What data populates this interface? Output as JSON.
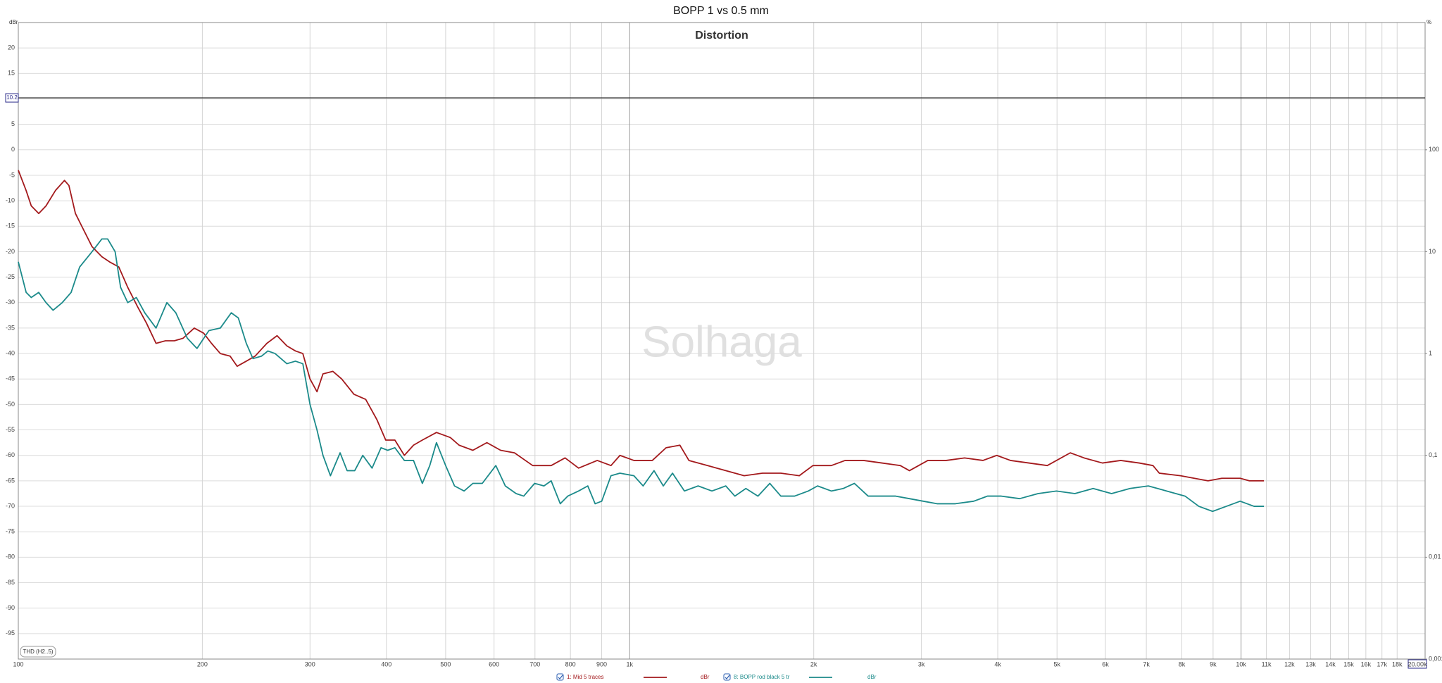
{
  "chart_data": {
    "type": "line",
    "title": "BOPP 1 vs 0.5 mm",
    "subtitle": "Distortion",
    "watermark": "Solhaga",
    "ylabel": "dBr",
    "y2label": "%",
    "annotation": "THD (H2..5)",
    "marker_y": 10.2,
    "log_x": true,
    "log_y2": true,
    "grid": true,
    "xlim": [
      100,
      20000
    ],
    "xticks": [
      100,
      200,
      300,
      400,
      500,
      600,
      700,
      800,
      900,
      {
        "value": 1000,
        "label": "1k"
      },
      {
        "value": 2000,
        "label": "2k"
      },
      {
        "value": 3000,
        "label": "3k"
      },
      {
        "value": 4000,
        "label": "4k"
      },
      {
        "value": 5000,
        "label": "5k"
      },
      {
        "value": 6000,
        "label": "6k"
      },
      {
        "value": 7000,
        "label": "7k"
      },
      {
        "value": 8000,
        "label": "8k"
      },
      {
        "value": 9000,
        "label": "9k"
      },
      {
        "value": 10000,
        "label": "10k"
      },
      {
        "value": 11000,
        "label": "11k"
      },
      {
        "value": 12000,
        "label": "12k"
      },
      {
        "value": 13000,
        "label": "13k"
      },
      {
        "value": 14000,
        "label": "14k"
      },
      {
        "value": 15000,
        "label": "15k"
      },
      {
        "value": 16000,
        "label": "16k"
      },
      {
        "value": 17000,
        "label": "17k"
      },
      {
        "value": 18000,
        "label": "18k"
      },
      {
        "value": 20000,
        "label": "20.00k"
      }
    ],
    "ylim": [
      -100,
      25
    ],
    "yticks": [
      20,
      15,
      10,
      5,
      0,
      -5,
      -10,
      -15,
      -20,
      -25,
      -30,
      -35,
      -40,
      -45,
      -50,
      -55,
      -60,
      -65,
      -70,
      -75,
      -80,
      -85,
      -90,
      -95
    ],
    "y2lim": [
      0.001,
      1778
    ],
    "y2ticks": [
      100,
      10,
      1,
      {
        "value": 0.1,
        "label": "0,1"
      },
      {
        "value": 0.01,
        "label": "0,01"
      },
      {
        "value": 0.001,
        "label": "0,001"
      }
    ],
    "series": [
      {
        "name": "1: Mid 5 traces",
        "unit": "dBr",
        "color": "#a3191c",
        "x": [
          100,
          103,
          105,
          108,
          111,
          115,
          119,
          121,
          124,
          127,
          132,
          137,
          141,
          146,
          151,
          157,
          162,
          168,
          174,
          180,
          186,
          194,
          201,
          207,
          214,
          222,
          228,
          236,
          244,
          255,
          265,
          275,
          284,
          292,
          300,
          308,
          315,
          327,
          338,
          354,
          370,
          386,
          399,
          413,
          428,
          443,
          458,
          483,
          509,
          526,
          554,
          584,
          615,
          648,
          694,
          744,
          784,
          825,
          885,
          932,
          964,
          1016,
          1089,
          1147,
          1208,
          1250,
          1340,
          1436,
          1539,
          1649,
          1767,
          1894,
          1994,
          2137,
          2251,
          2413,
          2586,
          2771,
          2868,
          3074,
          3294,
          3530,
          3783,
          3985,
          4197,
          4498,
          4820,
          5256,
          5536,
          5932,
          6357,
          6813,
          7176,
          7351,
          7960,
          8384,
          8830,
          9300,
          9967,
          10320,
          10900
        ],
        "values": [
          -4,
          -8,
          -11,
          -12.5,
          -11,
          -8,
          -6,
          -7,
          -12.5,
          -15,
          -19,
          -21,
          -22,
          -23,
          -27,
          -31,
          -34,
          -38,
          -37.5,
          -37.5,
          -37,
          -35,
          -36,
          -38,
          -40,
          -40.5,
          -42.5,
          -41.5,
          -40.5,
          -38,
          -36.5,
          -38.5,
          -39.5,
          -40,
          -45,
          -47.5,
          -44,
          -43.5,
          -45,
          -48,
          -49,
          -53,
          -57,
          -57,
          -60,
          -58,
          -57,
          -55.5,
          -56.5,
          -58,
          -59,
          -57.5,
          -59,
          -59.5,
          -62,
          -62,
          -60.5,
          -62.5,
          -61,
          -62,
          -60,
          -61,
          -61,
          -58.5,
          -58,
          -61,
          -62,
          -63,
          -64,
          -63.5,
          -63.5,
          -64,
          -62,
          -62,
          -61,
          -61,
          -61.5,
          -62,
          -63,
          -61,
          -61,
          -60.5,
          -61,
          -60,
          -61,
          -61.5,
          -62,
          -59.5,
          -60.5,
          -61.5,
          -61,
          -61.5,
          -62,
          -63.5,
          -64,
          -64.5,
          -65,
          -64.5,
          -64.5,
          -65,
          -65
        ]
      },
      {
        "name": "8: BOPP rod black 5 tr",
        "unit": "dBr",
        "color": "#1b8a8a",
        "x": [
          100,
          103,
          105,
          108,
          111,
          114,
          118,
          122,
          126,
          132,
          137,
          140,
          144,
          147,
          151,
          156,
          161,
          168,
          175,
          181,
          189,
          196,
          205,
          214,
          223,
          229,
          236,
          242,
          250,
          256,
          263,
          275,
          284,
          292,
          300,
          308,
          315,
          324,
          336,
          345,
          355,
          366,
          379,
          392,
          402,
          413,
          428,
          443,
          458,
          471,
          483,
          500,
          517,
          536,
          554,
          574,
          604,
          626,
          652,
          671,
          699,
          724,
          744,
          770,
          792,
          825,
          854,
          878,
          900,
          932,
          964,
          1016,
          1052,
          1096,
          1135,
          1175,
          1229,
          1294,
          1363,
          1436,
          1486,
          1549,
          1621,
          1695,
          1767,
          1861,
          1960,
          2029,
          2137,
          2236,
          2331,
          2455,
          2586,
          2723,
          2868,
          3021,
          3182,
          3410,
          3654,
          3848,
          4054,
          4344,
          4655,
          4989,
          5347,
          5729,
          6140,
          6580,
          7051,
          7556,
          8098,
          8529,
          8984,
          9462,
          9967,
          10500,
          10900
        ],
        "values": [
          -22,
          -28,
          -29,
          -28,
          -30,
          -31.5,
          -30,
          -28,
          -23,
          -20,
          -17.5,
          -17.5,
          -20,
          -27,
          -30,
          -29,
          -32,
          -35,
          -30,
          -32,
          -37,
          -39,
          -35.5,
          -35,
          -32,
          -33,
          -38,
          -41,
          -40.5,
          -39.5,
          -40,
          -42,
          -41.5,
          -42,
          -50,
          -55,
          -60,
          -64,
          -59.5,
          -63,
          -63,
          -60,
          -62.5,
          -58.5,
          -59,
          -58.5,
          -61,
          -61,
          -65.5,
          -62,
          -57.5,
          -62,
          -66,
          -67,
          -65.5,
          -65.5,
          -62,
          -66,
          -67.5,
          -68,
          -65.5,
          -66,
          -65,
          -69.5,
          -68,
          -67,
          -66,
          -69.5,
          -69,
          -64,
          -63.5,
          -64,
          -66,
          -63,
          -66,
          -63.5,
          -67,
          -66,
          -67,
          -66,
          -68,
          -66.5,
          -68,
          -65.5,
          -68,
          -68,
          -67,
          -66,
          -67,
          -66.5,
          -65.5,
          -68,
          -68,
          -68,
          -68.5,
          -69,
          -69.5,
          -69.5,
          -69,
          -68,
          -68,
          -68.5,
          -67.5,
          -67,
          -67.5,
          -66.5,
          -67.5,
          -66.5,
          -66,
          -67,
          -68,
          -70,
          -71,
          -70,
          -69,
          -70,
          -70
        ]
      }
    ]
  }
}
